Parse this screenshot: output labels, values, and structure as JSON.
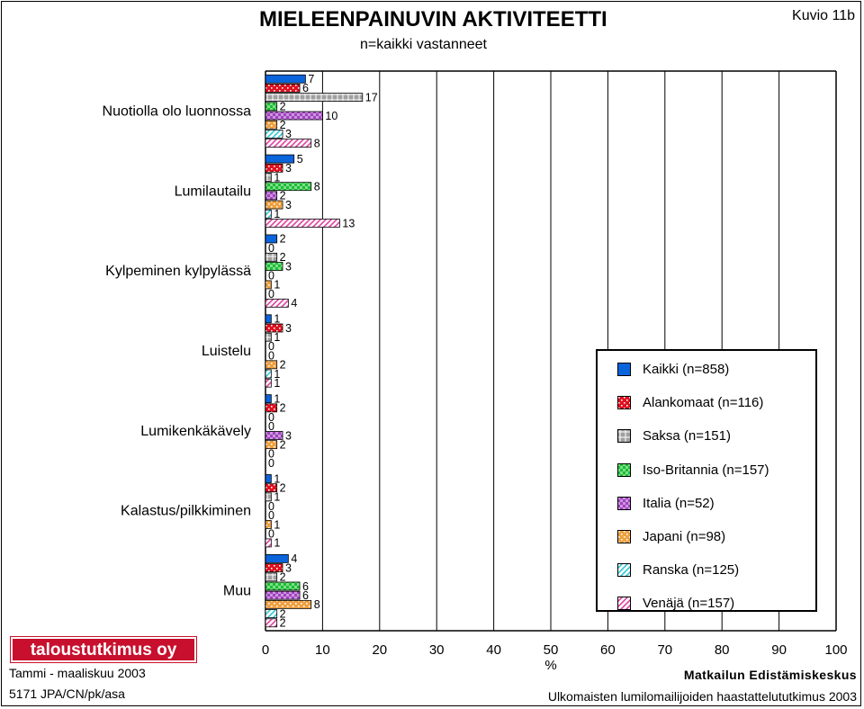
{
  "header": {
    "title": "MIELEENPAINUVIN AKTIVITEETTI",
    "subtitle": "n=kaikki vastanneet",
    "figure_label": "Kuvio 11b"
  },
  "footer": {
    "logo_text": "taloustutkimus oy",
    "date": "Tammi - maaliskuu 2003",
    "code": "5171 JPA/CN/pk/asa",
    "organization": "Matkailun Edistämiskeskus",
    "study": "Ulkomaisten lumilomailijoiden haastattelututkimus 2003"
  },
  "chart_data": {
    "type": "bar",
    "orientation": "horizontal",
    "title": "MIELEENPAINUVIN AKTIVITEETTI",
    "subtitle": "n=kaikki vastanneet",
    "xlabel": "%",
    "ylabel": "",
    "xlim": [
      0,
      100
    ],
    "x_ticks": [
      0,
      10,
      20,
      30,
      40,
      50,
      60,
      70,
      80,
      90,
      100
    ],
    "grid": true,
    "legend_position": "right",
    "categories": [
      "Nuotiolla olo luonnossa",
      "Lumilautailu",
      "Kylpeminen kylpylässä",
      "Luistelu",
      "Lumikenkäkävely",
      "Kalastus/pilkkiminen",
      "Muu"
    ],
    "series": [
      {
        "name": "Kaikki (n=858)",
        "color": "#0a64dc",
        "pattern": "solid",
        "values": [
          7,
          5,
          2,
          1,
          1,
          1,
          4
        ]
      },
      {
        "name": "Alankomaat (n=116)",
        "color": "#e0101e",
        "pattern": "dots",
        "values": [
          6,
          3,
          0,
          3,
          2,
          2,
          3
        ]
      },
      {
        "name": "Saksa (n=151)",
        "color": "#a0a0a0",
        "pattern": "grid",
        "values": [
          17,
          1,
          2,
          1,
          0,
          1,
          2
        ]
      },
      {
        "name": "Iso-Britannia (n=157)",
        "color": "#18c030",
        "pattern": "checker",
        "values": [
          2,
          8,
          3,
          0,
          0,
          0,
          6
        ]
      },
      {
        "name": "Italia (n=52)",
        "color": "#a040c0",
        "pattern": "checker",
        "values": [
          10,
          2,
          0,
          0,
          3,
          0,
          6
        ]
      },
      {
        "name": "Japani (n=98)",
        "color": "#f0a040",
        "pattern": "dots",
        "values": [
          2,
          3,
          1,
          2,
          2,
          1,
          8
        ]
      },
      {
        "name": "Ranska (n=125)",
        "color": "#30c8d8",
        "pattern": "diagonal",
        "values": [
          3,
          1,
          0,
          1,
          0,
          0,
          2
        ]
      },
      {
        "name": "Venäjä (n=157)",
        "color": "#e040a0",
        "pattern": "diagonal",
        "values": [
          8,
          13,
          4,
          1,
          0,
          1,
          2
        ]
      }
    ]
  }
}
